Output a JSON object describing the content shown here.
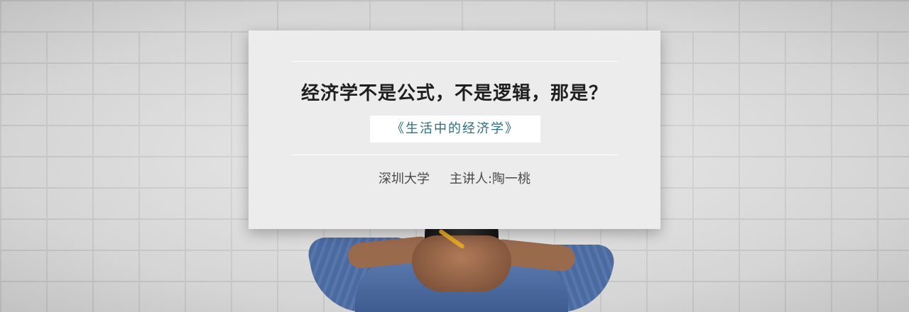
{
  "banner": {
    "headline": "经济学不是公式，不是逻辑，那是？",
    "course_title": "《生活中的经济学》",
    "institution": "深圳大学",
    "lecturer": "主讲人:陶一桃"
  },
  "colors": {
    "card_background": "#ececec",
    "headline_text": "#1f1f1f",
    "course_title_text": "#2b6f80",
    "byline_text": "#4a4a4a",
    "wall": "#e2e2e2"
  }
}
